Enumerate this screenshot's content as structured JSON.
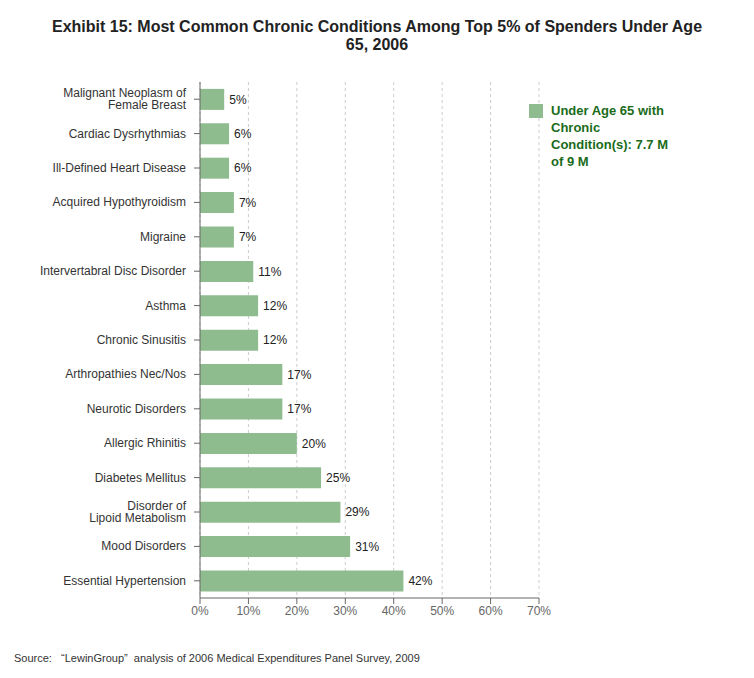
{
  "chart_data": {
    "type": "bar",
    "orientation": "horizontal",
    "title": "Exhibit 15: Most Common Chronic Conditions Among Top 5% of Spenders Under Age 65, 2006",
    "categories": [
      "Essential Hypertension",
      "Mood Disorders",
      "Disorder of\nLipoid Metabolism",
      "Diabetes Mellitus",
      "Allergic Rhinitis",
      "Neurotic Disorders",
      "Arthropathies Nec/Nos",
      "Chronic Sinusitis",
      "Asthma",
      "Intervertabral Disc Disorder",
      "Migraine",
      "Acquired Hypothyroidism",
      "Ill-Defined Heart Disease",
      "Cardiac Dysrhythmias",
      "Malignant Neoplasm of\nFemale Breast"
    ],
    "series": [
      {
        "name": "Under Age 65 with Chronic Condition(s): 7.7 M of 9 M",
        "color": "#8FBC8F",
        "values": [
          42,
          31,
          29,
          25,
          20,
          17,
          17,
          12,
          12,
          11,
          7,
          7,
          6,
          6,
          5
        ],
        "value_labels": [
          "42%",
          "31%",
          "29%",
          "25%",
          "20%",
          "17%",
          "17%",
          "12%",
          "12%",
          "11%",
          "7%",
          "7%",
          "6%",
          "6%",
          "5%"
        ]
      }
    ],
    "xlim": [
      0,
      70
    ],
    "xticks": [
      {
        "value": 0,
        "label": "0%"
      },
      {
        "value": 10,
        "label": "10%"
      },
      {
        "value": 20,
        "label": "20%"
      },
      {
        "value": 30,
        "label": "30%"
      },
      {
        "value": 40,
        "label": "40%"
      },
      {
        "value": 50,
        "label": "50%"
      },
      {
        "value": 60,
        "label": "60%"
      },
      {
        "value": 70,
        "label": "70%"
      }
    ],
    "grid": true,
    "data_labels": true,
    "legend": "upper right",
    "annotations": [
      "Source:   “LewinGroup”  analysis of 2006 Medical Expenditures Panel Survey, 2009"
    ]
  }
}
